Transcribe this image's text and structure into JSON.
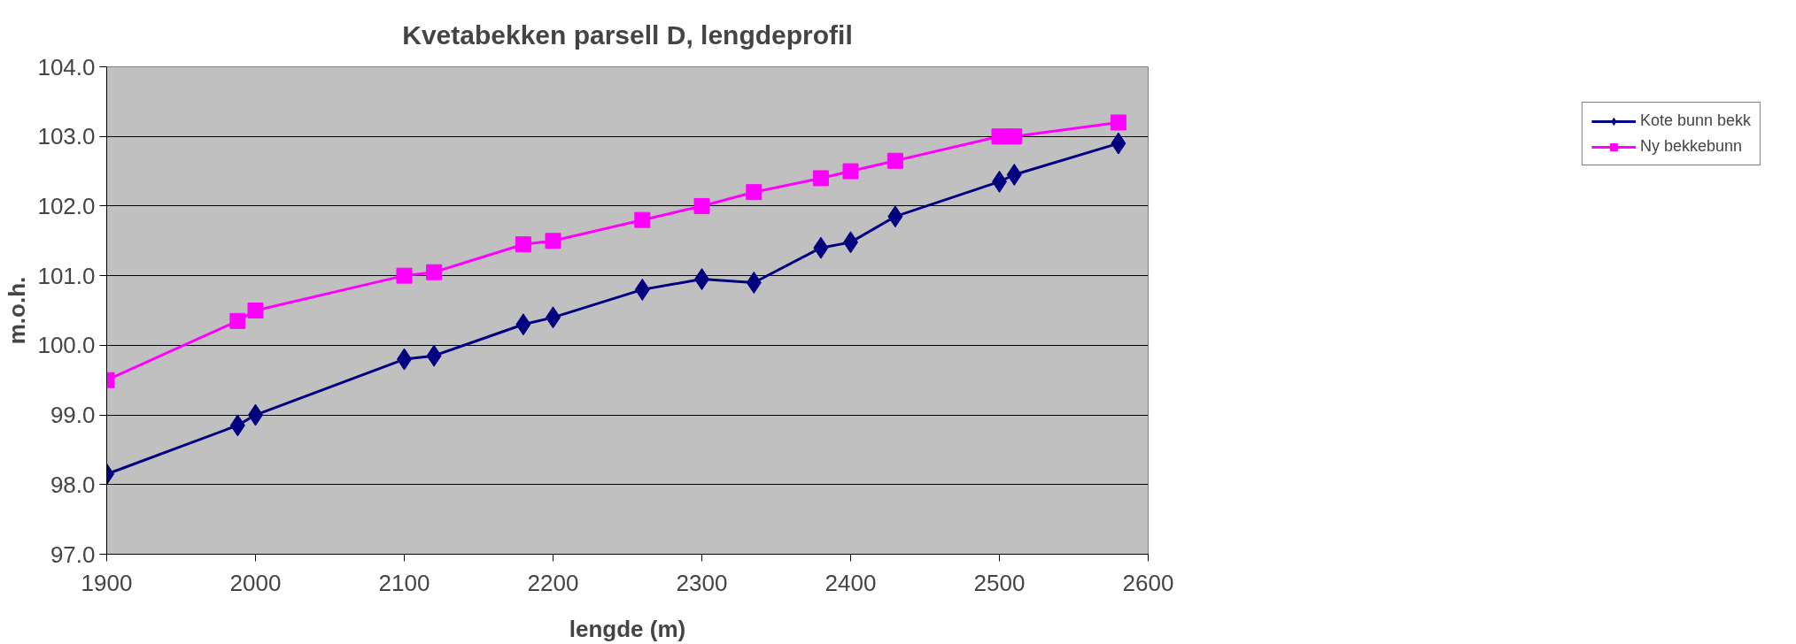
{
  "chart_data": {
    "type": "line",
    "title": "Kvetabekken parsell D, lengdeprofil",
    "xlabel": "lengde (m)",
    "ylabel": "m.o.h.",
    "x": [
      1900,
      1988,
      2000,
      2100,
      2120,
      2180,
      2200,
      2260,
      2300,
      2335,
      2380,
      2400,
      2430,
      2500,
      2510,
      2580
    ],
    "series": [
      {
        "name": "Kote bunn bekk",
        "color": "#000080",
        "marker": "diamond",
        "values": [
          98.15,
          98.85,
          99.0,
          99.8,
          99.85,
          100.3,
          100.4,
          100.8,
          100.95,
          100.9,
          101.4,
          101.48,
          101.85,
          102.35,
          102.45,
          102.9
        ]
      },
      {
        "name": "Ny bekkebunn",
        "color": "#ff00ff",
        "marker": "square",
        "values": [
          99.5,
          100.35,
          100.5,
          101.0,
          101.05,
          101.45,
          101.5,
          101.8,
          102.0,
          102.2,
          102.4,
          102.5,
          102.65,
          103.0,
          103.0,
          103.2
        ]
      }
    ],
    "xlim": [
      1900,
      2600
    ],
    "xticks": [
      1900,
      2000,
      2100,
      2200,
      2300,
      2400,
      2500,
      2600
    ],
    "ylim": [
      97.0,
      104.0
    ],
    "yticks": [
      {
        "value": 97,
        "label": "97.0"
      },
      {
        "value": 98,
        "label": "98.0"
      },
      {
        "value": 99,
        "label": "99.0"
      },
      {
        "value": 100,
        "label": "100.0"
      },
      {
        "value": 101,
        "label": "101.0"
      },
      {
        "value": 102,
        "label": "102.0"
      },
      {
        "value": 103,
        "label": "103.0"
      },
      {
        "value": 104,
        "label": "104.0"
      }
    ],
    "grid": "y",
    "legend": "right",
    "line_style": "solid"
  }
}
